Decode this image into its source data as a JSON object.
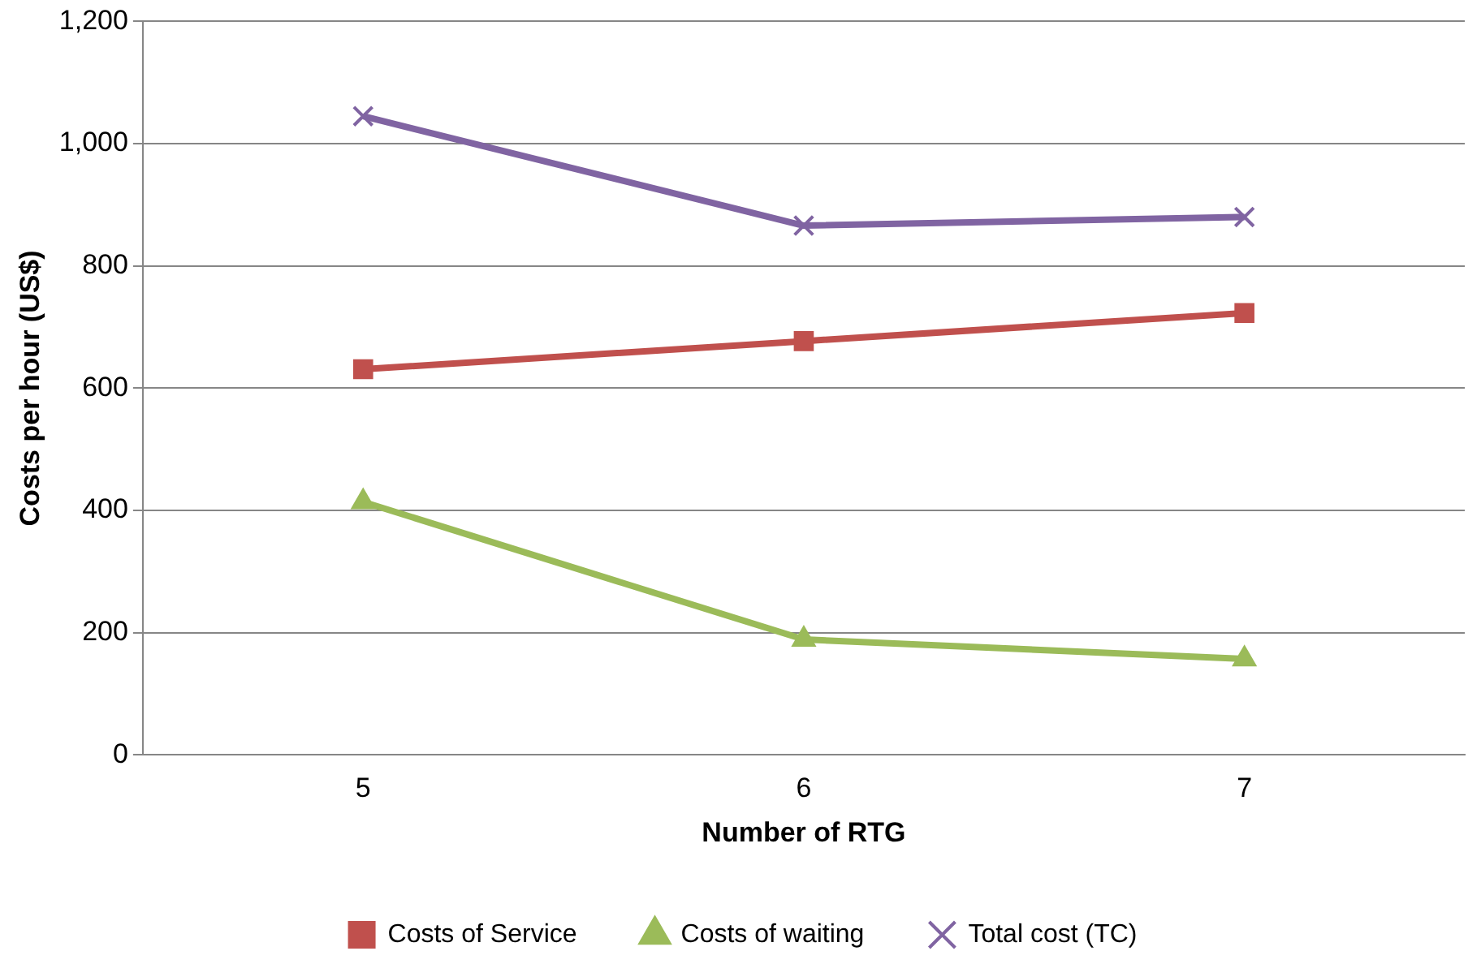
{
  "chart_data": {
    "type": "line",
    "xlabel": "Number of RTG",
    "ylabel": "Costs per hour (US$)",
    "categories": [
      "5",
      "6",
      "7"
    ],
    "series": [
      {
        "name": "Costs of Service",
        "color": "#c0504d",
        "marker": "square",
        "values": [
          631,
          677,
          723
        ]
      },
      {
        "name": "Costs of waiting",
        "color": "#9bbb59",
        "marker": "triangle",
        "values": [
          414,
          189,
          157
        ]
      },
      {
        "name": "Total cost (TC)",
        "color": "#8064a2",
        "marker": "cross",
        "values": [
          1045,
          866,
          880
        ]
      }
    ],
    "ylim": [
      0,
      1200
    ],
    "yticks": [
      {
        "value": 0,
        "label": "0"
      },
      {
        "value": 200,
        "label": "200"
      },
      {
        "value": 400,
        "label": "400"
      },
      {
        "value": 600,
        "label": "600"
      },
      {
        "value": 800,
        "label": "800"
      },
      {
        "value": 1000,
        "label": "1,000"
      },
      {
        "value": 1200,
        "label": "1,200"
      }
    ],
    "grid": "y",
    "legend": "bottom"
  }
}
